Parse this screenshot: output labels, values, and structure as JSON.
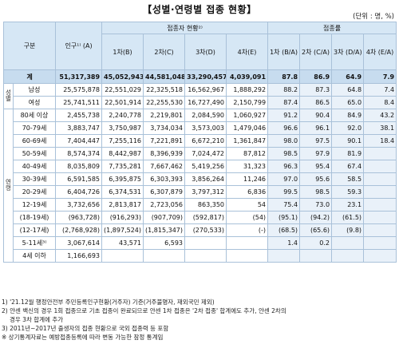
{
  "title": "【성별·연령별 접종 현황】",
  "unit": "(단위 : 명, %)",
  "header": {
    "category": "구분",
    "population": "인구¹⁾ (A)",
    "vaccinated_group": "접종자 현황²⁾",
    "rate_group": "접종률",
    "dose1": "1차(B)",
    "dose2": "2차(C)",
    "dose3": "3차(D)",
    "dose4": "4차(E)",
    "rate1": "1차 (B/A)",
    "rate2": "2차 (C/A)",
    "rate3": "3차 (D/A)",
    "rate4": "4차 (E/A)"
  },
  "side_labels": {
    "sex": "성별",
    "age": "연령"
  },
  "total": {
    "label": "계",
    "pop": "51,317,389",
    "d1": "45,052,943",
    "d2": "44,581,048",
    "d3": "33,290,457",
    "d4": "4,039,091",
    "r1": "87.8",
    "r2": "86.9",
    "r3": "64.9",
    "r4": "7.9"
  },
  "sex_rows": [
    {
      "label": "남성",
      "pop": "25,575,878",
      "d1": "22,551,029",
      "d2": "22,325,518",
      "d3": "16,562,967",
      "d4": "1,888,292",
      "r1": "88.2",
      "r2": "87.3",
      "r3": "64.8",
      "r4": "7.4"
    },
    {
      "label": "여성",
      "pop": "25,741,511",
      "d1": "22,501,914",
      "d2": "22,255,530",
      "d3": "16,727,490",
      "d4": "2,150,799",
      "r1": "87.4",
      "r2": "86.5",
      "r3": "65.0",
      "r4": "8.4"
    }
  ],
  "age_rows": [
    {
      "label": "80세 이상",
      "pop": "2,455,738",
      "d1": "2,240,778",
      "d2": "2,219,801",
      "d3": "2,084,590",
      "d4": "1,060,927",
      "r1": "91.2",
      "r2": "90.4",
      "r3": "84.9",
      "r4": "43.2"
    },
    {
      "label": "70-79세",
      "pop": "3,883,747",
      "d1": "3,750,987",
      "d2": "3,734,034",
      "d3": "3,573,003",
      "d4": "1,479,046",
      "r1": "96.6",
      "r2": "96.1",
      "r3": "92.0",
      "r4": "38.1"
    },
    {
      "label": "60-69세",
      "pop": "7,404,447",
      "d1": "7,255,116",
      "d2": "7,221,891",
      "d3": "6,672,210",
      "d4": "1,361,847",
      "r1": "98.0",
      "r2": "97.5",
      "r3": "90.1",
      "r4": "18.4"
    },
    {
      "label": "50-59세",
      "pop": "8,574,374",
      "d1": "8,442,987",
      "d2": "8,396,939",
      "d3": "7,024,472",
      "d4": "87,812",
      "r1": "98.5",
      "r2": "97.9",
      "r3": "81.9",
      "r4": ""
    },
    {
      "label": "40-49세",
      "pop": "8,035,809",
      "d1": "7,735,281",
      "d2": "7,667,462",
      "d3": "5,419,256",
      "d4": "31,323",
      "r1": "96.3",
      "r2": "95.4",
      "r3": "67.4",
      "r4": ""
    },
    {
      "label": "30-39세",
      "pop": "6,591,585",
      "d1": "6,395,875",
      "d2": "6,303,393",
      "d3": "3,856,264",
      "d4": "11,246",
      "r1": "97.0",
      "r2": "95.6",
      "r3": "58.5",
      "r4": ""
    },
    {
      "label": "20-29세",
      "pop": "6,404,726",
      "d1": "6,374,531",
      "d2": "6,307,879",
      "d3": "3,797,312",
      "d4": "6,836",
      "r1": "99.5",
      "r2": "98.5",
      "r3": "59.3",
      "r4": ""
    },
    {
      "label": "12-19세",
      "pop": "3,732,656",
      "d1": "2,813,817",
      "d2": "2,723,056",
      "d3": "863,350",
      "d4": "54",
      "r1": "75.4",
      "r2": "73.0",
      "r3": "23.1",
      "r4": ""
    },
    {
      "label": "(18-19세)",
      "pop": "(963,728)",
      "d1": "(916,293)",
      "d2": "(907,709)",
      "d3": "(592,817)",
      "d4": "(54)",
      "r1": "(95.1)",
      "r2": "(94.2)",
      "r3": "(61.5)",
      "r4": ""
    },
    {
      "label": "(12-17세)",
      "pop": "(2,768,928)",
      "d1": "(1,897,524)",
      "d2": "(1,815,347)",
      "d3": "(270,533)",
      "d4": "(-)",
      "r1": "(68.5)",
      "r2": "(65.6)",
      "r3": "(9.8)",
      "r4": ""
    },
    {
      "label": "5-11세³⁾",
      "pop": "3,067,614",
      "d1": "43,571",
      "d2": "6,593",
      "d3": "",
      "d4": "",
      "r1": "1.4",
      "r2": "0.2",
      "r3": "",
      "r4": ""
    },
    {
      "label": "4세 이하",
      "pop": "1,166,693",
      "d1": "",
      "d2": "",
      "d3": "",
      "d4": "",
      "r1": "",
      "r2": "",
      "r3": "",
      "r4": ""
    }
  ],
  "notes": [
    "1) '21.12월 행정안전부 주민등록인구현황(거주자) 기준(거주불명자, 재외국민 제외)",
    "2) 얀센 백신의 경우 1회 접종으로 기초 접종이 완료되므로 얀센 1차 접종은 '2차 접종' 합계에도 추가, 얀센 2차의",
    "경우 3차 합계에 추가",
    "3) 2011년~2017년 출생자의 접종 현황으로 국외 접종력 등 포함",
    "※ 상기통계자료는 예방접종등록에 따라 변동 가능한 잠정 통계임"
  ]
}
